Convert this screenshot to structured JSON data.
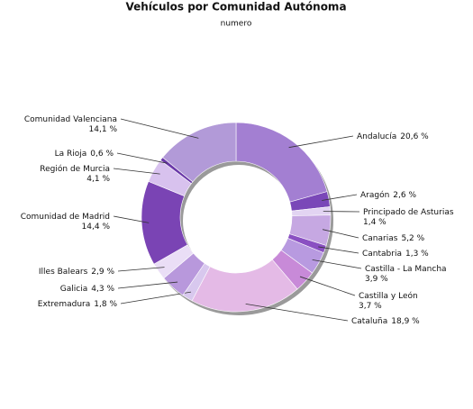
{
  "chart_data": {
    "type": "donut",
    "title": "Vehículos por Comunidad Autónoma",
    "subtitle": "numero",
    "categories": [
      "Andalucía",
      "Aragón",
      "Principado de Asturias",
      "Canarias",
      "Cantabria",
      "Castilla - La Mancha",
      "Castilla y León",
      "Cataluña",
      "Extremadura",
      "Galicia",
      "Illes Balears",
      "Comunidad de Madrid",
      "Región de Murcia",
      "La Rioja",
      "Comunidad Valenciana"
    ],
    "values": [
      20.6,
      2.6,
      1.4,
      5.2,
      1.3,
      3.9,
      3.7,
      18.9,
      1.8,
      4.3,
      2.9,
      14.4,
      4.1,
      0.6,
      14.1
    ],
    "value_labels": [
      "20,6 %",
      "2,6 %",
      "1,4 %",
      "5,2 %",
      "1,3 %",
      "3,9 %",
      "3,7 %",
      "18,9 %",
      "1,8 %",
      "4,3 %",
      "2,9 %",
      "14,4 %",
      "4,1 %",
      "0,6 %",
      "14,1 %"
    ],
    "colors": [
      "#a37fd2",
      "#7a48b8",
      "#e2d4f2",
      "#c6a8e2",
      "#8a50c2",
      "#b89ae0",
      "#c88ad8",
      "#e4bae6",
      "#d8c8ee",
      "#b898dc",
      "#eadef6",
      "#7a44b4",
      "#d8c2ee",
      "#6a38a8",
      "#b29ad8"
    ]
  }
}
